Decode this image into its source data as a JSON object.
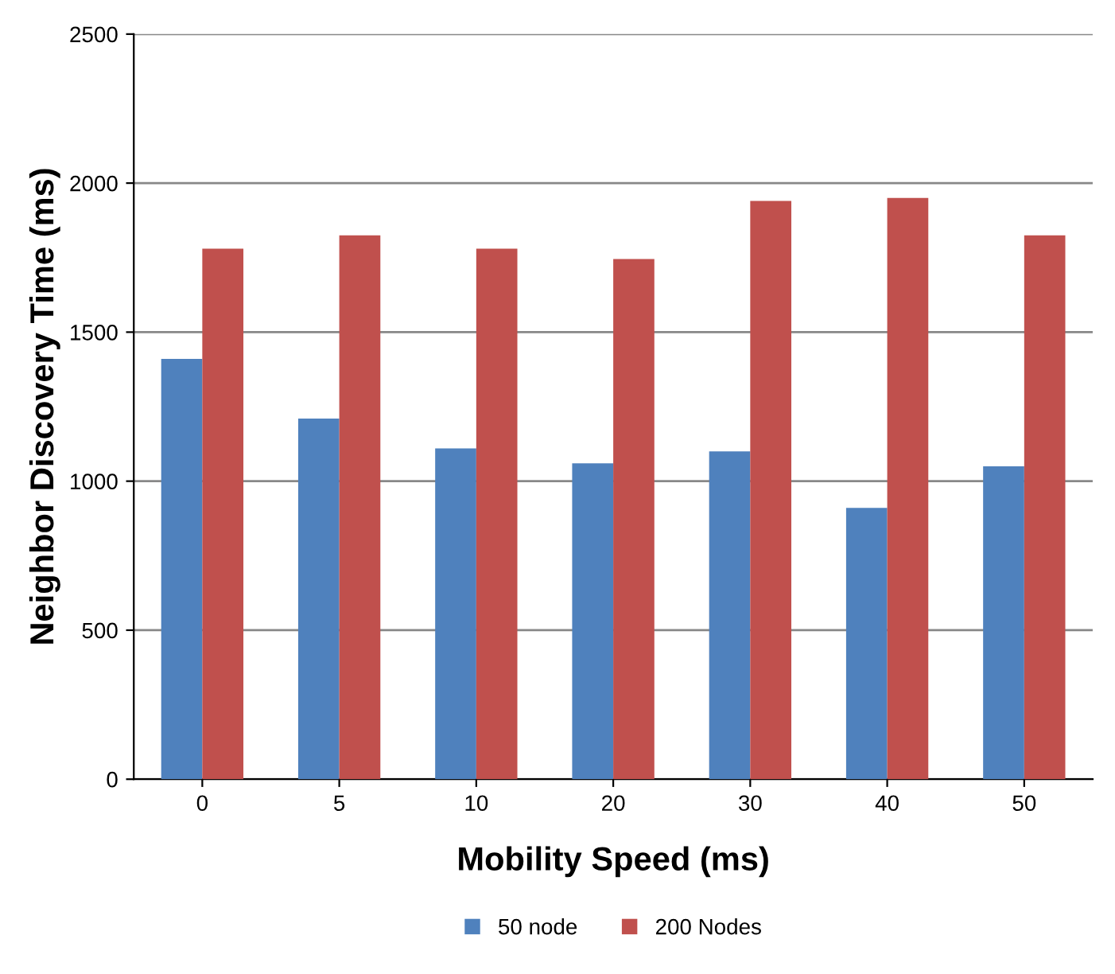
{
  "chart_data": {
    "type": "bar",
    "xlabel": "Mobility Speed (ms)",
    "ylabel": "Neighbor Discovery Time (ms)",
    "categories": [
      "0",
      "5",
      "10",
      "20",
      "30",
      "40",
      "50"
    ],
    "series": [
      {
        "name": "50 node",
        "color": "#4f81bd",
        "values": [
          1410,
          1210,
          1110,
          1060,
          1100,
          910,
          1050
        ]
      },
      {
        "name": "200 Nodes",
        "color": "#c0504d",
        "values": [
          1780,
          1825,
          1780,
          1745,
          1940,
          1950,
          1825
        ]
      }
    ],
    "ylim": [
      0,
      2500
    ],
    "yticks": [
      0,
      500,
      1000,
      1500,
      2000,
      2500
    ],
    "grid": "y",
    "legend": "bottom"
  }
}
